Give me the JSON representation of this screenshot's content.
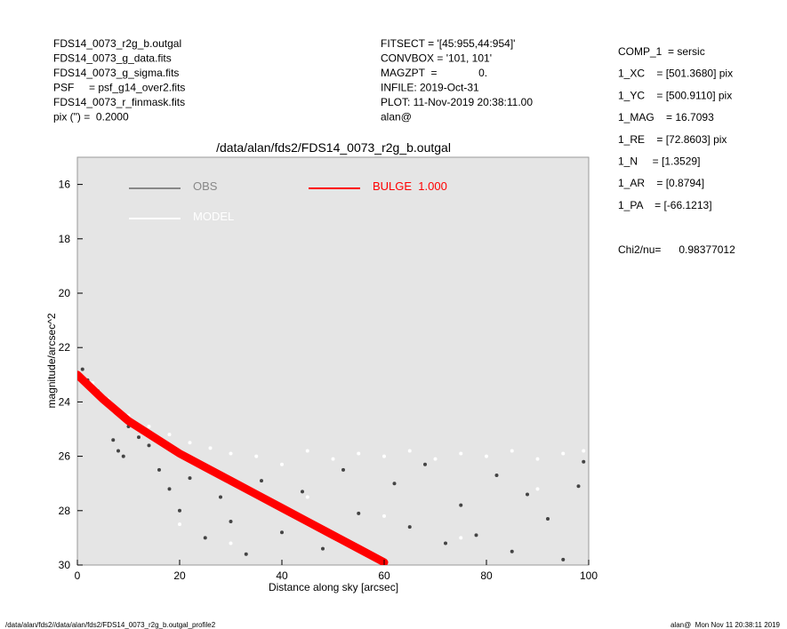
{
  "header_left": [
    "FDS14_0073_r2g_b.outgal",
    "FDS14_0073_g_data.fits",
    "FDS14_0073_g_sigma.fits",
    "PSF     = psf_g14_over2.fits",
    "FDS14_0073_r_finmask.fits",
    "pix (\") =  0.2000"
  ],
  "header_center": [
    "FITSECT = '[45:955,44:954]'",
    "CONVBOX = '101, 101'",
    "MAGZPT  =              0.",
    "INFILE: 2019-Oct-31",
    "PLOT: 11-Nov-2019 20:38:11.00",
    "alan@"
  ],
  "header_right": [
    "COMP_1  = sersic",
    "1_XC    = [501.3680] pix",
    "1_YC    = [500.9110] pix",
    "1_MAG    = 16.7093",
    "1_RE    = [72.8603] pix",
    "1_N     = [1.3529]",
    "1_AR    = [0.8794]",
    "1_PA    = [-66.1213]"
  ],
  "chi2": "Chi2/nu=      0.98377012",
  "footer_left": "/data/alan/fds2//data/alan/fds2/FDS14_0073_r2g_b.outgal_profile2",
  "footer_right": "alan@  Mon Nov 11 20:38:11 2019",
  "chart_data": {
    "type": "scatter",
    "title": "/data/alan/fds2/FDS14_0073_r2g_b.outgal",
    "x_label": "Distance along sky [arcsec]",
    "y_label": "magnitude/arcsec^2",
    "xlim": [
      0,
      100
    ],
    "xticks": [
      0,
      20,
      40,
      60,
      80,
      100
    ],
    "ylim": [
      30,
      15
    ],
    "yticks": [
      16,
      18,
      20,
      22,
      24,
      26,
      28,
      30
    ],
    "series": [
      {
        "name": "OBS",
        "color": "#444444",
        "x": [
          1,
          2,
          4,
          6,
          7,
          8,
          9,
          10,
          12,
          14,
          16,
          18,
          20,
          22,
          25,
          28,
          30,
          33,
          36,
          40,
          44,
          48,
          52,
          55,
          58,
          62,
          65,
          68,
          72,
          75,
          78,
          82,
          85,
          88,
          92,
          95,
          98,
          99
        ],
        "values": [
          22.8,
          23.2,
          23.6,
          24.1,
          25.4,
          25.8,
          26.0,
          24.9,
          25.3,
          25.6,
          26.5,
          27.2,
          28.0,
          26.8,
          29.0,
          27.5,
          28.4,
          29.6,
          26.9,
          28.8,
          27.3,
          29.4,
          26.5,
          28.1,
          29.7,
          27.0,
          28.6,
          26.3,
          29.2,
          27.8,
          28.9,
          26.7,
          29.5,
          27.4,
          28.3,
          29.8,
          27.1,
          26.2
        ]
      },
      {
        "name": "MODEL",
        "color": "#ffffff",
        "x": [
          3,
          6,
          10,
          14,
          18,
          22,
          26,
          30,
          35,
          40,
          45,
          50,
          55,
          60,
          65,
          70,
          75,
          80,
          85,
          90,
          95,
          99,
          20,
          30,
          45,
          60,
          75,
          90
        ],
        "values": [
          23.3,
          23.9,
          24.5,
          24.9,
          25.2,
          25.5,
          25.7,
          25.9,
          26.0,
          26.3,
          25.8,
          26.1,
          25.9,
          26.0,
          25.8,
          26.1,
          25.9,
          26.0,
          25.8,
          26.1,
          25.9,
          25.8,
          28.5,
          29.2,
          27.5,
          28.2,
          29.0,
          27.2
        ]
      },
      {
        "name": "BULGE  1.000",
        "color": "#ff0000",
        "x": [
          0,
          5,
          10,
          15,
          20,
          25,
          30,
          35,
          40,
          45,
          50,
          55,
          60
        ],
        "values": [
          23.0,
          23.9,
          24.7,
          25.3,
          25.9,
          26.4,
          26.9,
          27.4,
          27.9,
          28.4,
          28.9,
          29.4,
          29.9
        ]
      }
    ]
  }
}
